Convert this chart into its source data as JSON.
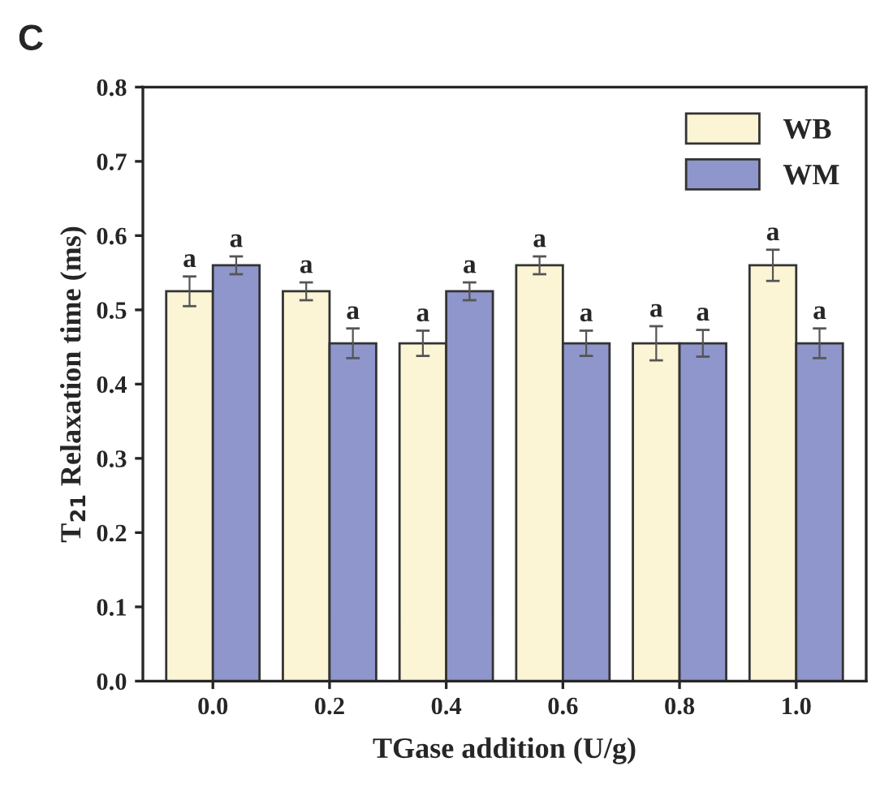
{
  "chart_data": {
    "type": "bar",
    "xlabel": "TGase addition (U/g)",
    "ylabel": "T$_{21}$ Relaxation time (ms)",
    "annotations": [
      "C"
    ],
    "categories": [
      "0.0",
      "0.2",
      "0.4",
      "0.6",
      "0.8",
      "1.0"
    ],
    "series": [
      {
        "name": "WB",
        "color": "#fbf5d6",
        "values": [
          0.525,
          0.525,
          0.455,
          0.56,
          0.455,
          0.56
        ],
        "errors": [
          0.02,
          0.012,
          0.017,
          0.012,
          0.023,
          0.021
        ],
        "value_labels": [
          "a",
          "a",
          "a",
          "a",
          "a",
          "a"
        ]
      },
      {
        "name": "WM",
        "color": "#8e96cb",
        "values": [
          0.56,
          0.455,
          0.525,
          0.455,
          0.455,
          0.455
        ],
        "errors": [
          0.012,
          0.02,
          0.012,
          0.017,
          0.018,
          0.02
        ],
        "value_labels": [
          "a",
          "a",
          "a",
          "a",
          "a",
          "a"
        ]
      }
    ],
    "ylim": [
      0,
      0.8
    ],
    "yticks": [
      "0.0",
      0.1,
      0.2,
      0.3,
      0.4,
      0.5,
      0.6,
      0.7,
      0.8
    ],
    "grid": false,
    "legend": "top right"
  }
}
